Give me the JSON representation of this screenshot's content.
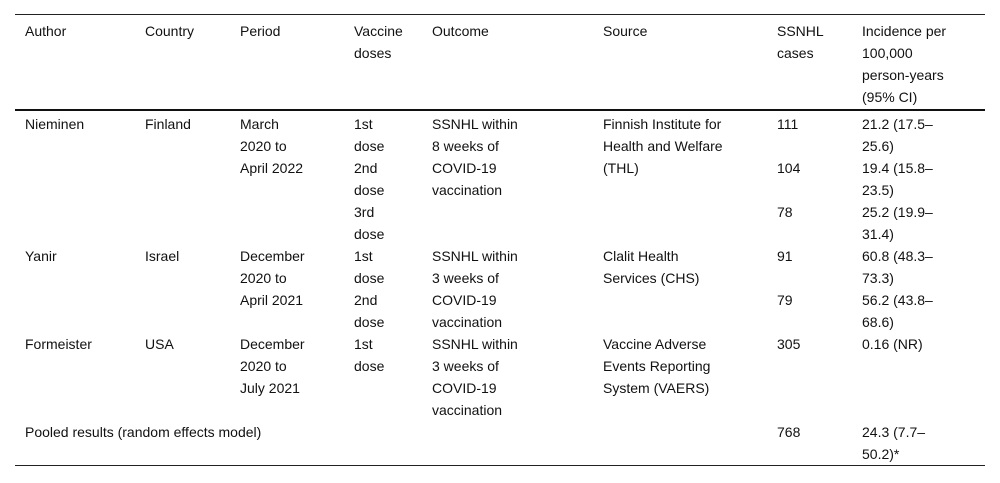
{
  "headers": [
    "Author",
    "Country",
    "Period",
    "Vaccine\ndoses",
    "Outcome",
    "Source",
    "SSNHL\ncases",
    "Incidence per\n100,000\nperson-years\n(95% CI)"
  ],
  "studies": [
    {
      "author": "Nieminen",
      "country": "Finland",
      "period": "March\n2020 to\nApril 2022",
      "outcome": "SSNHL within\n8 weeks of\nCOVID-19\nvaccination",
      "source": "Finnish Institute for\nHealth and Welfare\n(THL)",
      "doses": [
        {
          "dose": "1st\ndose",
          "cases": "111",
          "incidence": "21.2 (17.5–\n25.6)"
        },
        {
          "dose": "2nd\ndose",
          "cases": "104",
          "incidence": "19.4 (15.8–\n23.5)"
        },
        {
          "dose": "3rd\ndose",
          "cases": "78",
          "incidence": "25.2 (19.9–\n31.4)"
        }
      ]
    },
    {
      "author": "Yanir",
      "country": "Israel",
      "period": "December\n2020 to\nApril 2021",
      "outcome": "SSNHL within\n3 weeks of\nCOVID-19\nvaccination",
      "source": "Clalit Health\nServices (CHS)",
      "doses": [
        {
          "dose": "1st\ndose",
          "cases": "91",
          "incidence": "60.8 (48.3–\n73.3)"
        },
        {
          "dose": "2nd\ndose",
          "cases": "79",
          "incidence": "56.2 (43.8–\n68.6)"
        }
      ]
    },
    {
      "author": "Formeister",
      "country": "USA",
      "period": "December\n2020 to\nJuly 2021",
      "outcome": "SSNHL within\n3 weeks of\nCOVID-19\nvaccination",
      "source": "Vaccine Adverse\nEvents Reporting\nSystem (VAERS)",
      "doses": [
        {
          "dose": "1st\ndose",
          "cases": "305",
          "incidence": "0.16 (NR)"
        }
      ]
    }
  ],
  "pooled": {
    "label": "Pooled results (random effects model)",
    "cases": "768",
    "incidence": "24.3 (7.7–\n50.2)*"
  }
}
